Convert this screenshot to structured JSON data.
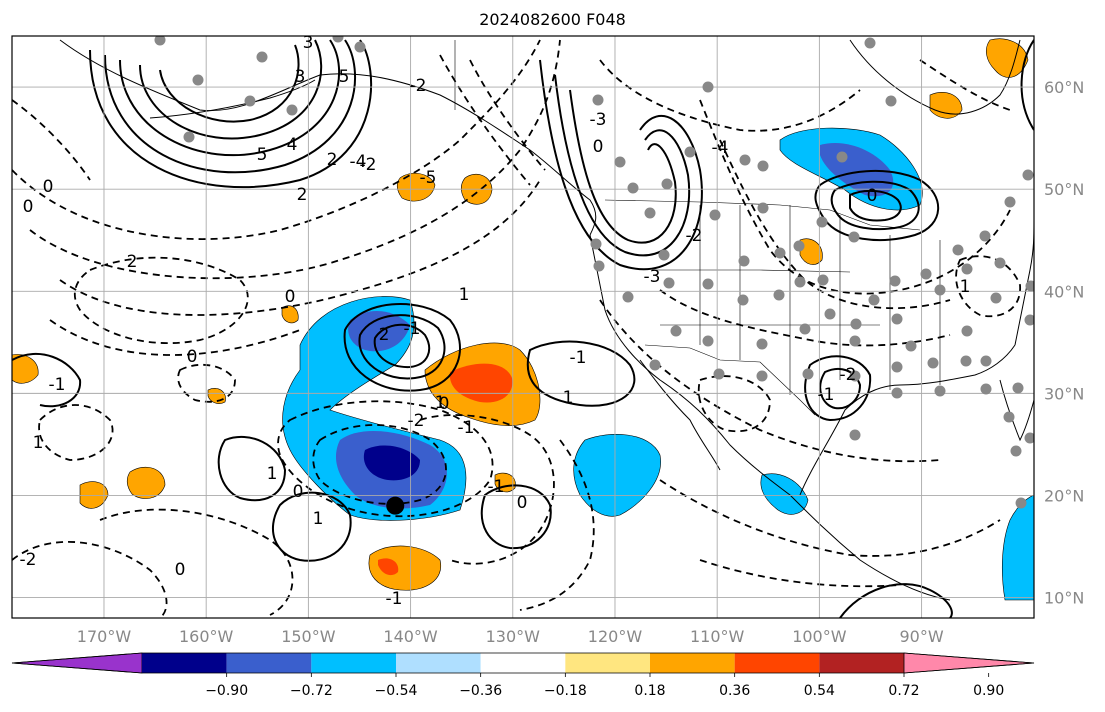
{
  "title": "2024082600 F048",
  "map": {
    "type": "geographic-contour-map",
    "region": "North Pacific / North America",
    "grid": true,
    "lon_ticks": [
      "170°W",
      "160°W",
      "150°W",
      "140°W",
      "130°W",
      "120°W",
      "110°W",
      "100°W",
      "90°W"
    ],
    "lat_ticks": [
      "60°N",
      "50°N",
      "40°N",
      "30°N",
      "20°N",
      "10°N"
    ],
    "lon_values": [
      -170,
      -160,
      -150,
      -140,
      -130,
      -120,
      -110,
      -100,
      -90
    ],
    "lat_values": [
      60,
      50,
      40,
      30,
      20,
      10
    ],
    "lon_range": [
      -179,
      -79
    ],
    "lat_range": [
      8,
      65
    ],
    "contour_labels": [
      "3",
      "5",
      "4",
      "5",
      "3",
      "2",
      "0",
      "0",
      "2",
      "-2",
      "1",
      "-2",
      "-5",
      "-4",
      "2",
      "0",
      "2",
      "-1",
      "-2",
      "0",
      "1",
      "-1",
      "0",
      "-1",
      "1",
      "0",
      "-1",
      "1",
      "0",
      "1",
      "0",
      "-1",
      "-2",
      "0",
      "-3",
      "-4",
      "0",
      "1",
      "-2",
      "-1",
      "-2",
      "-3",
      "1",
      "-1"
    ],
    "storm_marker": {
      "lon": -141.5,
      "lat": 19
    }
  },
  "colorbar": {
    "ticks": [
      "−0.90",
      "−0.72",
      "−0.54",
      "−0.36",
      "−0.18",
      "0.18",
      "0.36",
      "0.54",
      "0.72",
      "0.90"
    ],
    "colors": [
      "#9933cc",
      "#00008b",
      "#3a5fcd",
      "#00bfff",
      "#afdfff",
      "#ffffff",
      "#ffe680",
      "#ffa500",
      "#ff4500",
      "#b22222",
      "#ff88aa"
    ]
  }
}
